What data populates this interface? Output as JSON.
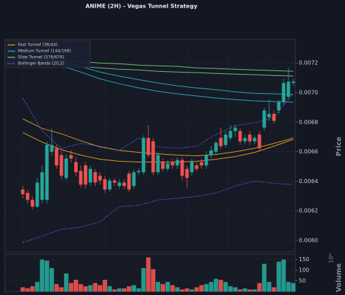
{
  "chart_data": {
    "type": "candlestick",
    "title": "ANIME (2H) - Vegas Tunnel Strategy",
    "ylabel": "Price",
    "volume_label": "Volume",
    "volume_offset": "10⁶",
    "up_color": "#26a69a",
    "down_color": "#ef5350",
    "grid": true,
    "legend": "upper left",
    "ylim": [
      0.00592,
      0.00736
    ],
    "yticks": [
      {
        "value": 0.006,
        "label": "0.0060"
      },
      0.0062,
      0.0064,
      0.0066,
      0.0068,
      {
        "value": 0.007,
        "label": "0.0070"
      },
      0.0072
    ],
    "vlim": [
      0,
      175
    ],
    "vticks": [
      50,
      100,
      150
    ],
    "open": [
      0.006344,
      0.006321,
      0.006274,
      0.006228,
      0.006274,
      0.006274,
      0.0066,
      0.006623,
      0.006577,
      0.006423,
      0.006577,
      0.00653,
      0.00647,
      0.006507,
      0.006391,
      0.006461,
      0.006437,
      0.006414,
      0.006344,
      0.006405,
      0.006368,
      0.006391,
      0.006451,
      0.006368,
      0.006461,
      0.006461,
      0.006693,
      0.00667,
      0.006461,
      0.00653,
      0.006484,
      0.00653,
      0.006507,
      0.006544,
      0.006484,
      0.006461,
      0.006507,
      0.00653,
      0.006507,
      0.006577,
      0.0066,
      0.006693,
      0.006646,
      0.006693,
      0.00674,
      0.00674,
      0.00667,
      0.006716,
      0.00667,
      0.006716,
      0.006763,
      0.006833,
      0.006856,
      0.006879,
      0.006935,
      0.006972,
      0.007065
    ],
    "high": [
      0.006368,
      0.00634,
      0.006298,
      0.006423,
      0.006507,
      0.00667,
      0.006758,
      0.006646,
      0.006605,
      0.006581,
      0.006609,
      0.006563,
      0.006507,
      0.00653,
      0.006507,
      0.006484,
      0.006461,
      0.006437,
      0.006423,
      0.006423,
      0.006414,
      0.006414,
      0.00647,
      0.006479,
      0.006488,
      0.006712,
      0.006781,
      0.006693,
      0.0066,
      0.006554,
      0.006544,
      0.006554,
      0.006563,
      0.006563,
      0.006507,
      0.006554,
      0.00653,
      0.006554,
      0.0066,
      0.006637,
      0.006674,
      0.006763,
      0.00674,
      0.006781,
      0.006781,
      0.006758,
      0.006716,
      0.00674,
      0.006712,
      0.00674,
      0.006898,
      0.006953,
      0.006879,
      0.006953,
      0.007093,
      0.007167,
      0.007093
    ],
    "low": [
      0.006284,
      0.006247,
      0.006209,
      0.006219,
      0.006247,
      0.006251,
      0.006572,
      0.006484,
      0.006414,
      0.006405,
      0.006526,
      0.006433,
      0.006358,
      0.006349,
      0.006368,
      0.006368,
      0.006377,
      0.006321,
      0.00633,
      0.006368,
      0.006349,
      0.006344,
      0.006326,
      0.006349,
      0.006442,
      0.006442,
      0.006558,
      0.006442,
      0.006442,
      0.006465,
      0.006465,
      0.006484,
      0.006484,
      0.006405,
      0.006358,
      0.006437,
      0.006465,
      0.006484,
      0.006484,
      0.006554,
      0.006577,
      0.006619,
      0.006628,
      0.006674,
      0.006698,
      0.006646,
      0.006651,
      0.006646,
      0.006651,
      0.006605,
      0.00674,
      0.006809,
      0.006791,
      0.006856,
      0.006916,
      0.006953,
      0.007046
    ],
    "close": [
      0.006312,
      0.006274,
      0.006228,
      0.006391,
      0.006461,
      0.006646,
      0.006646,
      0.006507,
      0.006437,
      0.006554,
      0.006554,
      0.006461,
      0.006377,
      0.006377,
      0.006484,
      0.006391,
      0.006405,
      0.006344,
      0.006405,
      0.006391,
      0.006391,
      0.006368,
      0.006344,
      0.006461,
      0.00647,
      0.006693,
      0.006577,
      0.006461,
      0.006577,
      0.006484,
      0.006521,
      0.006507,
      0.006544,
      0.006437,
      0.006423,
      0.00653,
      0.006484,
      0.006507,
      0.006577,
      0.006609,
      0.00666,
      0.006637,
      0.006716,
      0.00674,
      0.006763,
      0.00667,
      0.006693,
      0.00667,
      0.006693,
      0.006623,
      0.006879,
      0.006856,
      0.006809,
      0.006935,
      0.007065,
      0.007074,
      0.007074
    ],
    "volume": [
      20,
      15,
      25,
      45,
      150,
      145,
      110,
      35,
      20,
      85,
      40,
      55,
      35,
      25,
      30,
      40,
      30,
      55,
      25,
      10,
      15,
      15,
      25,
      30,
      15,
      110,
      160,
      105,
      45,
      35,
      45,
      30,
      20,
      10,
      15,
      10,
      20,
      30,
      35,
      45,
      60,
      55,
      45,
      25,
      20,
      10,
      15,
      10,
      10,
      40,
      130,
      45,
      20,
      140,
      150,
      45,
      40
    ],
    "series": [
      {
        "name": "Fast Tunnel (36/44)",
        "color": "#f5a623",
        "dashed": false,
        "x": [
          0,
          4,
          8,
          12,
          16,
          20,
          24,
          28,
          32,
          36,
          40,
          44,
          48,
          52,
          56
        ],
        "upper": [
          0.006823,
          0.006758,
          0.006721,
          0.006674,
          0.006632,
          0.006609,
          0.006595,
          0.006586,
          0.006577,
          0.006572,
          0.006581,
          0.0066,
          0.006623,
          0.006656,
          0.006693
        ],
        "lower": [
          0.00673,
          0.006665,
          0.006614,
          0.006577,
          0.006549,
          0.006535,
          0.00653,
          0.00653,
          0.00653,
          0.006535,
          0.006549,
          0.006567,
          0.006595,
          0.006637,
          0.006684
        ]
      },
      {
        "name": "Medium Tunnel (144/169)",
        "color": "#29b6d6",
        "dashed": false,
        "x": [
          0,
          4,
          8,
          12,
          16,
          20,
          24,
          28,
          32,
          36,
          40,
          44,
          48,
          52,
          56
        ],
        "upper": [
          0.007251,
          0.007232,
          0.007209,
          0.007177,
          0.007139,
          0.007111,
          0.007088,
          0.007065,
          0.007046,
          0.007032,
          0.007019,
          0.007005,
          0.006995,
          0.006991,
          0.006986
        ],
        "lower": [
          0.007232,
          0.007209,
          0.007181,
          0.007139,
          0.007093,
          0.00706,
          0.007032,
          0.007009,
          0.006991,
          0.006977,
          0.006963,
          0.006953,
          0.006944,
          0.006939,
          0.006935
        ]
      },
      {
        "name": "Slow Tunnel (576/676)",
        "color": "#7ccd7c",
        "dashed": false,
        "x": [
          0,
          4,
          8,
          12,
          16,
          20,
          24,
          28,
          32,
          36,
          40,
          44,
          48,
          52,
          56
        ],
        "upper": [
          0.007223,
          0.007218,
          0.007214,
          0.007209,
          0.0072,
          0.007195,
          0.007186,
          0.007181,
          0.007177,
          0.007167,
          0.007163,
          0.007158,
          0.007153,
          0.007149,
          0.007144
        ],
        "lower": [
          0.007205,
          0.007195,
          0.007186,
          0.007177,
          0.007167,
          0.007158,
          0.007153,
          0.007144,
          0.007139,
          0.007135,
          0.00713,
          0.007125,
          0.007121,
          0.007116,
          0.007112
        ]
      },
      {
        "name": "Bollinger Bands (20,2)",
        "color": "#7b61ff",
        "dashed": true,
        "x": [
          0,
          4,
          8,
          12,
          16,
          20,
          24,
          28,
          32,
          36,
          40,
          44,
          48,
          52,
          56
        ],
        "upper": [
          0.006963,
          0.00674,
          0.006623,
          0.006656,
          0.006637,
          0.006609,
          0.006693,
          0.006632,
          0.006623,
          0.006637,
          0.006716,
          0.006777,
          0.006795,
          0.006833,
          0.006995
        ],
        "lower": [
          0.005986,
          0.006028,
          0.006075,
          0.006089,
          0.006126,
          0.006228,
          0.006237,
          0.006274,
          0.006284,
          0.006298,
          0.006321,
          0.006368,
          0.0064,
          0.006386,
          0.006377
        ]
      }
    ]
  }
}
